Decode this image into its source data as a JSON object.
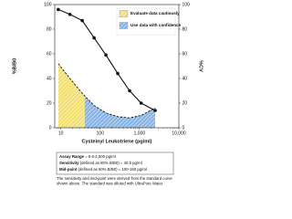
{
  "chart_data": {
    "type": "scatter",
    "x_label": "Cysteinyl Leukotriene (pg/ml)",
    "y_label": "%B/B0",
    "y2_label": "%CV",
    "x_log": true,
    "xlim": [
      7,
      10000
    ],
    "xticks": [
      10,
      100,
      {
        "value": 1000,
        "label": "1,000"
      },
      {
        "value": 10000,
        "label": "10,000"
      }
    ],
    "ylim": [
      0,
      100
    ],
    "yticks": [
      0,
      20,
      40,
      60,
      80,
      100
    ],
    "y2lim": [
      0,
      100
    ],
    "y2ticks": [
      0,
      20,
      40,
      60,
      80,
      100
    ],
    "x": [
      8.6,
      17,
      35,
      70,
      140,
      280,
      560,
      1100,
      2500
    ],
    "series": [
      {
        "name": "%B/B0",
        "color": "#111111",
        "values": [
          96,
          92,
          87,
          73,
          59,
          44,
          30,
          20,
          14
        ],
        "markers": true,
        "line": "solid"
      },
      {
        "name": "%CV",
        "color": "#111111",
        "axis": "y2",
        "values": [
          52,
          40,
          28,
          18,
          12,
          9,
          8,
          10,
          16
        ],
        "markers": false,
        "line": "dashed"
      }
    ],
    "regions": [
      {
        "name": "Evaluate data cautiously",
        "color": "#f3df6e",
        "from": 8.6,
        "to": 40.5
      },
      {
        "name": "Use data with confidence",
        "color": "#86b3e6",
        "from": 40.5,
        "to": 2500
      }
    ]
  },
  "info": [
    {
      "term": "Assay Range",
      "text": "= 8.6-2,500 pg/ml"
    },
    {
      "term": "Sensitivity",
      "text": "(defined as 80% B/B0) = 40.5 pg/ml"
    },
    {
      "term": "Mid-point",
      "text": "(defined as 50% B/B0) = 100-150 pg/ml"
    }
  ],
  "note": [
    "The sensitivity and mid-point were derived from the standard curve",
    "shown above. The standard was diluted with UltraPure Water."
  ]
}
